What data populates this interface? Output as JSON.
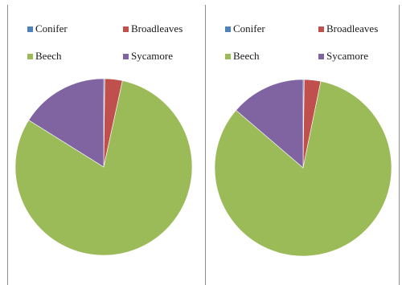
{
  "chart_data": [
    {
      "type": "pie",
      "legend_position": "top",
      "categories": [
        "Conifer",
        "Broadleaves",
        "Beech",
        "Sycamore"
      ],
      "colors": [
        "#4f81bd",
        "#c0504d",
        "#9bbb59",
        "#8064a2"
      ],
      "values": [
        0.2,
        3.2,
        80.5,
        16.1
      ],
      "start": "12 o'clock, clockwise"
    },
    {
      "type": "pie",
      "legend_position": "top",
      "categories": [
        "Conifer",
        "Broadleaves",
        "Beech",
        "Sycamore"
      ],
      "colors": [
        "#4f81bd",
        "#c0504d",
        "#9bbb59",
        "#8064a2"
      ],
      "values": [
        0.2,
        3.0,
        83.1,
        13.7
      ],
      "start": "12 o'clock, clockwise"
    }
  ]
}
